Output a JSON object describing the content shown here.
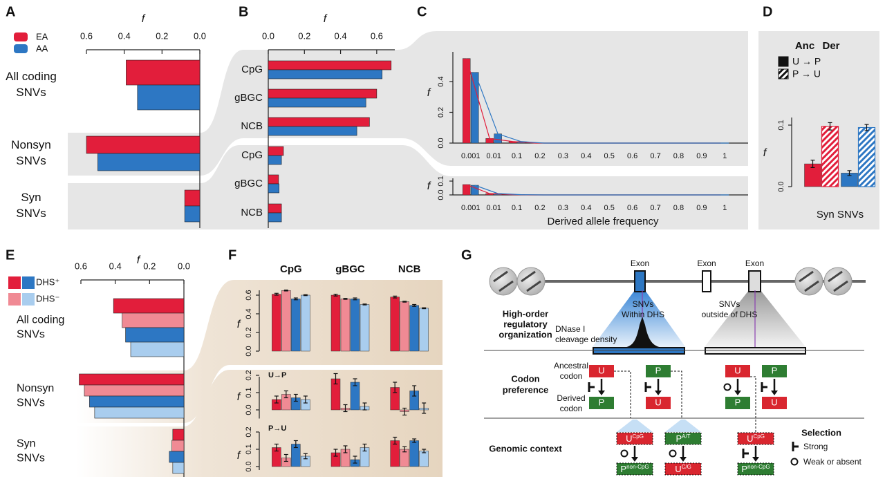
{
  "chart_data": [
    {
      "type": "hbar",
      "panel": "A",
      "xlabel": "f",
      "xlim": [
        0.6,
        0
      ],
      "xticks": [
        0.6,
        0.4,
        0.2,
        {
          "value": 0,
          "label": "0.0"
        }
      ],
      "categories": [
        [
          "All coding",
          "SNVs"
        ],
        [
          "Nonsyn",
          "SNVs"
        ],
        [
          "Syn",
          "SNVs"
        ]
      ],
      "series": [
        {
          "name": "EA",
          "color": "#e21e3b",
          "values": [
            0.39,
            0.6,
            0.08
          ]
        },
        {
          "name": "AA",
          "color": "#2d77c3",
          "values": [
            0.33,
            0.54,
            0.08
          ]
        }
      ]
    },
    {
      "type": "hbar",
      "panel": "B",
      "xlabel": "f",
      "xlim": [
        0,
        0.7
      ],
      "xticks": [
        {
          "value": 0,
          "label": "0.0"
        },
        0.2,
        0.4,
        0.6
      ],
      "categories": [
        "CpG",
        "gBGC",
        "NCB",
        "CpG",
        "gBGC",
        "NCB"
      ],
      "series": [
        {
          "color": "#e21e3b",
          "values": [
            0.68,
            0.6,
            0.56,
            0.084,
            0.057,
            0.073
          ]
        },
        {
          "color": "#2d77c3",
          "values": [
            0.63,
            0.54,
            0.49,
            0.073,
            0.06,
            0.073
          ]
        }
      ]
    },
    {
      "type": "bar",
      "panel": "C",
      "ylabel": "f",
      "ylim": [
        0,
        0.6
      ],
      "yticks": [
        {
          "value": 0,
          "label": "0.0"
        },
        0.2,
        0.4
      ],
      "lines": true,
      "categories": [
        "0.001",
        "0.01",
        "0.1",
        "0.2",
        "0.3",
        "0.4",
        "0.5",
        "0.6",
        "0.7",
        "0.8",
        "0.9",
        "1"
      ],
      "series": [
        {
          "color": "#e21e3b",
          "values": [
            0.55,
            0.03,
            0.01,
            0,
            0,
            0,
            0,
            0,
            0,
            0,
            0,
            0
          ]
        },
        {
          "color": "#2d77c3",
          "values": [
            0.46,
            0.06,
            0.01,
            0,
            0,
            0,
            0,
            0,
            0,
            0,
            0,
            0
          ]
        }
      ]
    },
    {
      "type": "bar",
      "ylabel": "f",
      "xlabel": "Derived allele frequency",
      "ylim": [
        0,
        0.1
      ],
      "yticks": [
        {
          "value": 0,
          "label": "0.0"
        },
        0.1
      ],
      "lines": true,
      "categories": [
        "0.001",
        "0.01",
        "0.1",
        "0.2",
        "0.3",
        "0.4",
        "0.5",
        "0.6",
        "0.7",
        "0.8",
        "0.9",
        "1"
      ],
      "series": [
        {
          "color": "#e21e3b",
          "values": [
            0.075,
            0.01,
            0.002,
            0,
            0,
            0,
            0,
            0,
            0,
            0,
            0,
            0
          ]
        },
        {
          "color": "#2d77c3",
          "values": [
            0.07,
            0.01,
            0.002,
            0,
            0,
            0,
            0,
            0,
            0,
            0,
            0,
            0
          ]
        }
      ]
    },
    {
      "type": "bar",
      "panel": "D",
      "ylabel": "f",
      "xlabel": "Syn SNVs",
      "ylim": [
        0,
        0.12
      ],
      "yticks": [
        {
          "value": 0,
          "label": "0.0"
        },
        0.1
      ],
      "legend_title": [
        "Anc",
        "Der"
      ],
      "categories": [
        null,
        null
      ],
      "category_colors": [
        "#e21e3b",
        "#2d77c3"
      ],
      "series": [
        {
          "name": "U → P",
          "pattern": "solid",
          "values": [
            0.037,
            0.022
          ],
          "errors": [
            0.006,
            0.004
          ]
        },
        {
          "name": "P → U",
          "pattern": "hatch",
          "values": [
            0.098,
            0.096
          ],
          "errors": [
            0.006,
            0.005
          ]
        }
      ]
    },
    {
      "type": "hbar",
      "panel": "E",
      "xlabel": "f",
      "xlim": [
        0.6,
        0
      ],
      "xticks": [
        0.6,
        0.4,
        0.2,
        {
          "value": 0,
          "label": "0.0"
        }
      ],
      "categories": [
        [
          "All coding",
          "SNVs"
        ],
        [
          "Nonsyn",
          "SNVs"
        ],
        [
          "Syn",
          "SNVs"
        ]
      ],
      "legend": [
        {
          "name": "DHS⁺",
          "colors": [
            "#e21e3b",
            "#2d77c3"
          ]
        },
        {
          "name": "DHS⁻",
          "colors": [
            "#f08a94",
            "#a9cdee"
          ]
        }
      ],
      "series": [
        {
          "color": "#e21e3b",
          "values": [
            0.41,
            0.61,
            0.065
          ]
        },
        {
          "color": "#f08a94",
          "values": [
            0.36,
            0.58,
            0.07
          ]
        },
        {
          "color": "#2d77c3",
          "values": [
            0.34,
            0.55,
            0.085
          ]
        },
        {
          "color": "#a9cdee",
          "values": [
            0.31,
            0.52,
            0.065
          ]
        }
      ]
    },
    {
      "type": "bar",
      "panel": "F",
      "ylabel": "f",
      "ylim": [
        0,
        0.7
      ],
      "yticks": [
        {
          "value": 0,
          "label": "0.0"
        },
        0.2,
        0.4,
        0.6
      ],
      "categories": [
        "CpG",
        "gBGC",
        "NCB"
      ],
      "series": [
        {
          "color": "#e21e3b",
          "values": [
            0.61,
            0.6,
            0.58
          ],
          "errors": [
            0.01,
            0.01,
            0.01
          ]
        },
        {
          "color": "#f08a94",
          "values": [
            0.65,
            0.56,
            0.53
          ],
          "errors": [
            0.005,
            0.005,
            0.005
          ]
        },
        {
          "color": "#2d77c3",
          "values": [
            0.56,
            0.56,
            0.49
          ],
          "errors": [
            0.01,
            0.01,
            0.01
          ]
        },
        {
          "color": "#a9cdee",
          "values": [
            0.6,
            0.5,
            0.46
          ],
          "errors": [
            0.005,
            0.005,
            0.005
          ]
        }
      ]
    },
    {
      "type": "bar",
      "ylabel": "f",
      "label": "U→P",
      "ylim": [
        -0.05,
        0.25
      ],
      "yticks": [
        {
          "value": 0,
          "label": "0.0"
        },
        0.1,
        0.2
      ],
      "categories": [
        null,
        null,
        null
      ],
      "series": [
        {
          "color": "#e21e3b",
          "values": [
            0.06,
            0.18,
            0.13
          ],
          "errors": [
            0.02,
            0.03,
            0.03
          ]
        },
        {
          "color": "#f08a94",
          "values": [
            0.09,
            0.01,
            -0.01
          ],
          "errors": [
            0.02,
            0.02,
            0.02
          ]
        },
        {
          "color": "#2d77c3",
          "values": [
            0.07,
            0.16,
            0.11
          ],
          "errors": [
            0.02,
            0.02,
            0.03
          ]
        },
        {
          "color": "#a9cdee",
          "values": [
            0.06,
            0.02,
            0.01
          ],
          "errors": [
            0.02,
            0.02,
            0.03
          ]
        }
      ]
    },
    {
      "type": "bar",
      "ylabel": "f",
      "label": "P→U",
      "ylim": [
        -0.02,
        0.25
      ],
      "yticks": [
        {
          "value": 0,
          "label": "0.0"
        },
        0.1,
        0.2
      ],
      "categories": [
        null,
        null,
        null
      ],
      "series": [
        {
          "color": "#e21e3b",
          "values": [
            0.11,
            0.08,
            0.15
          ],
          "errors": [
            0.02,
            0.02,
            0.02
          ]
        },
        {
          "color": "#f08a94",
          "values": [
            0.05,
            0.1,
            0.1
          ],
          "errors": [
            0.02,
            0.02,
            0.015
          ]
        },
        {
          "color": "#2d77c3",
          "values": [
            0.13,
            0.04,
            0.15
          ],
          "errors": [
            0.02,
            0.02,
            0.01
          ]
        },
        {
          "color": "#a9cdee",
          "values": [
            0.06,
            0.11,
            0.09
          ],
          "errors": [
            0.015,
            0.02,
            0.01
          ]
        }
      ]
    }
  ],
  "diagram": {
    "panel": "G",
    "exon_labels": [
      "Exon",
      "Exon",
      "Exon"
    ],
    "snv_labels": [
      [
        "SNVs",
        "Within DHS"
      ],
      [
        "SNVs",
        "outside of DHS"
      ]
    ],
    "dnase_label": [
      "DNase I",
      "cleavage density"
    ],
    "row_labels": [
      [
        "High-order",
        "regulatory",
        "organization"
      ],
      [
        "Codon",
        "preference"
      ],
      [
        "Genomic context"
      ]
    ],
    "codon_labels": [
      [
        "Ancestral",
        "codon"
      ],
      [
        "Derived",
        "codon"
      ]
    ],
    "ancestral": [
      "U",
      "P",
      "U",
      "P"
    ],
    "derived": [
      "P",
      "U",
      "P",
      "U"
    ],
    "context": [
      {
        "from": {
          "base": "U",
          "sup": "CpG"
        },
        "to": {
          "base": "P",
          "sup": "non-CpG"
        }
      },
      {
        "from": {
          "base": "P",
          "sup": "A/T"
        },
        "to": {
          "base": "U",
          "sup": "C/G"
        }
      },
      {
        "from": {
          "base": "U",
          "sup": "CpG"
        },
        "to": {
          "base": "P",
          "sup": "non-CpG"
        }
      }
    ],
    "selection": {
      "title": "Selection",
      "strong": "Strong",
      "weak": "Weak or absent"
    }
  }
}
